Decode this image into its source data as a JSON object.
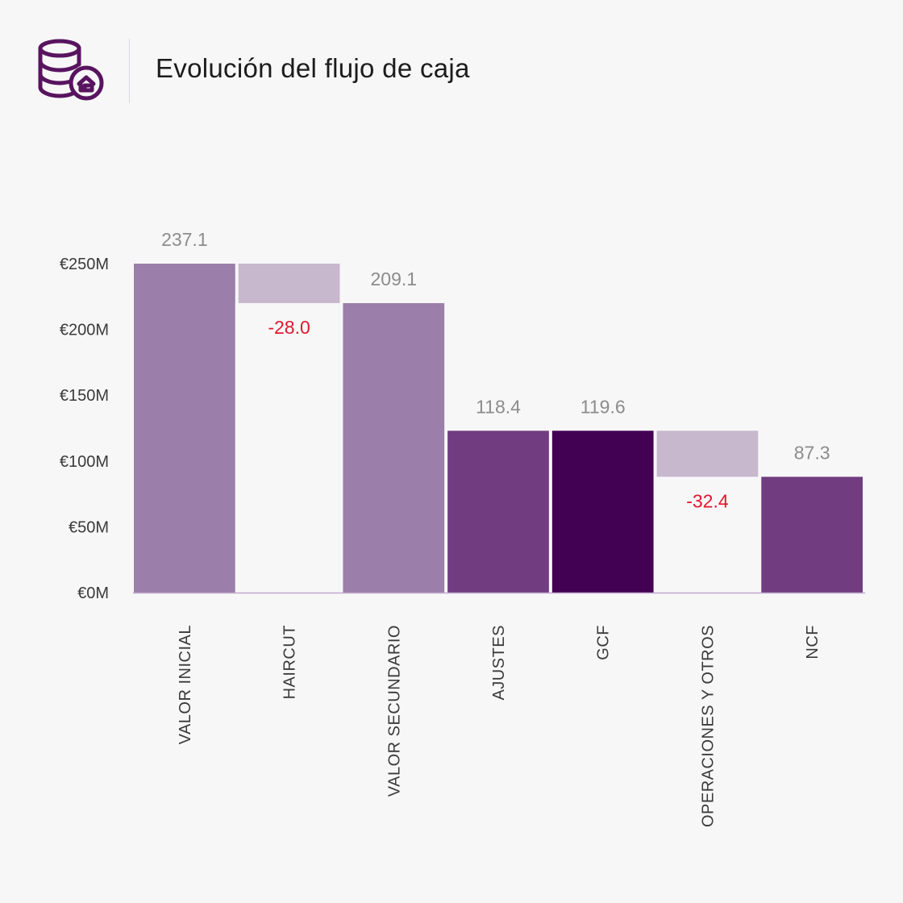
{
  "header": {
    "title": "Evolución del flujo de caja",
    "logo_icon": "coins-stack-house-icon",
    "accent_color": "#58145f"
  },
  "chart_data": {
    "type": "waterfall",
    "title": "Evolución del flujo de caja",
    "xlabel": "",
    "ylabel": "",
    "ylim": [
      0,
      250
    ],
    "yticks": [
      0,
      50,
      100,
      150,
      200,
      250
    ],
    "ytick_labels": [
      "€0M",
      "€50M",
      "€100M",
      "€150M",
      "€200M",
      "€250M"
    ],
    "grid": false,
    "categories": [
      "VALOR INICIAL",
      "HAIRCUT",
      "VALOR SECUNDARIO",
      "AJUSTES",
      "GCF",
      "OPERACIONES Y OTROS",
      "NCF"
    ],
    "bars": [
      {
        "category": "VALOR INICIAL",
        "kind": "total",
        "base": 0,
        "top": 250,
        "value": 237.1,
        "label": "237.1",
        "color": "#9b7ea9"
      },
      {
        "category": "HAIRCUT",
        "kind": "decrease",
        "base": 220,
        "top": 250,
        "value": -28.0,
        "label": "-28.0",
        "color": "#c8b8cd"
      },
      {
        "category": "VALOR SECUNDARIO",
        "kind": "total",
        "base": 0,
        "top": 220,
        "value": 209.1,
        "label": "209.1",
        "color": "#9b7ea9"
      },
      {
        "category": "AJUSTES",
        "kind": "total",
        "base": 0,
        "top": 123,
        "value": 118.4,
        "label": "118.4",
        "color": "#713c80"
      },
      {
        "category": "GCF",
        "kind": "total",
        "base": 0,
        "top": 123,
        "value": 119.6,
        "label": "119.6",
        "color": "#430154"
      },
      {
        "category": "OPERACIONES Y OTROS",
        "kind": "decrease",
        "base": 88,
        "top": 123,
        "value": -32.4,
        "label": "-32.4",
        "color": "#c8b8cd"
      },
      {
        "category": "NCF",
        "kind": "total",
        "base": 0,
        "top": 88,
        "value": 87.3,
        "label": "87.3",
        "color": "#713c80"
      }
    ],
    "negative_label_color": "#e0182d",
    "value_label_color": "#8c8c8c",
    "baseline_color": "#c2a8cf"
  }
}
